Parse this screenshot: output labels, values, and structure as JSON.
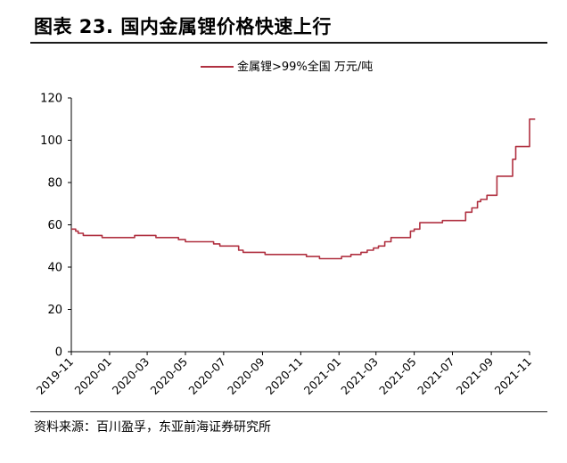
{
  "header": {
    "title": "图表 23. 国内金属锂价格快速上行"
  },
  "footer": {
    "source": "资料来源：百川盈孚，东亚前海证券研究所"
  },
  "chart_data": {
    "type": "line",
    "title": "",
    "xlabel": "",
    "ylabel": "",
    "ylim": [
      0,
      120
    ],
    "yticks": [
      0,
      20,
      40,
      60,
      80,
      100,
      120
    ],
    "xticks": [
      "2019-11",
      "2020-01",
      "2020-03",
      "2020-05",
      "2020-07",
      "2020-09",
      "2020-11",
      "2021-01",
      "2021-03",
      "2021-05",
      "2021-07",
      "2021-09",
      "2021-11"
    ],
    "legend": "top-center",
    "grid": false,
    "colors": {
      "series": "#b03040"
    },
    "series": [
      {
        "name": "金属锂>99%全国 万元/吨",
        "x": [
          "2019-11-01",
          "2019-11-08",
          "2019-11-12",
          "2019-11-20",
          "2019-12-10",
          "2019-12-20",
          "2020-02-01",
          "2020-02-10",
          "2020-03-01",
          "2020-03-15",
          "2020-04-20",
          "2020-05-01",
          "2020-06-01",
          "2020-06-15",
          "2020-06-25",
          "2020-07-25",
          "2020-08-01",
          "2020-08-20",
          "2020-09-05",
          "2020-09-20",
          "2020-10-20",
          "2020-11-10",
          "2020-11-20",
          "2020-12-01",
          "2020-12-10",
          "2020-12-25",
          "2021-01-05",
          "2021-01-20",
          "2021-02-05",
          "2021-02-15",
          "2021-02-25",
          "2021-03-05",
          "2021-03-15",
          "2021-03-25",
          "2021-04-25",
          "2021-05-01",
          "2021-05-10",
          "2021-06-15",
          "2021-07-15",
          "2021-07-22",
          "2021-08-01",
          "2021-08-10",
          "2021-08-15",
          "2021-08-25",
          "2021-09-01",
          "2021-09-10",
          "2021-09-15",
          "2021-09-30",
          "2021-10-05",
          "2021-10-10",
          "2021-10-25",
          "2021-11-01",
          "2021-11-10"
        ],
        "values": [
          58,
          57,
          56,
          55,
          55,
          54,
          54,
          55,
          55,
          54,
          53,
          52,
          52,
          51,
          50,
          48,
          47,
          47,
          46,
          46,
          46,
          45,
          45,
          44,
          44,
          44,
          45,
          46,
          47,
          48,
          49,
          50,
          52,
          54,
          57,
          58,
          61,
          62,
          62,
          66,
          68,
          71,
          72,
          74,
          74,
          83,
          83,
          83,
          91,
          97,
          97,
          110,
          110
        ]
      }
    ]
  }
}
